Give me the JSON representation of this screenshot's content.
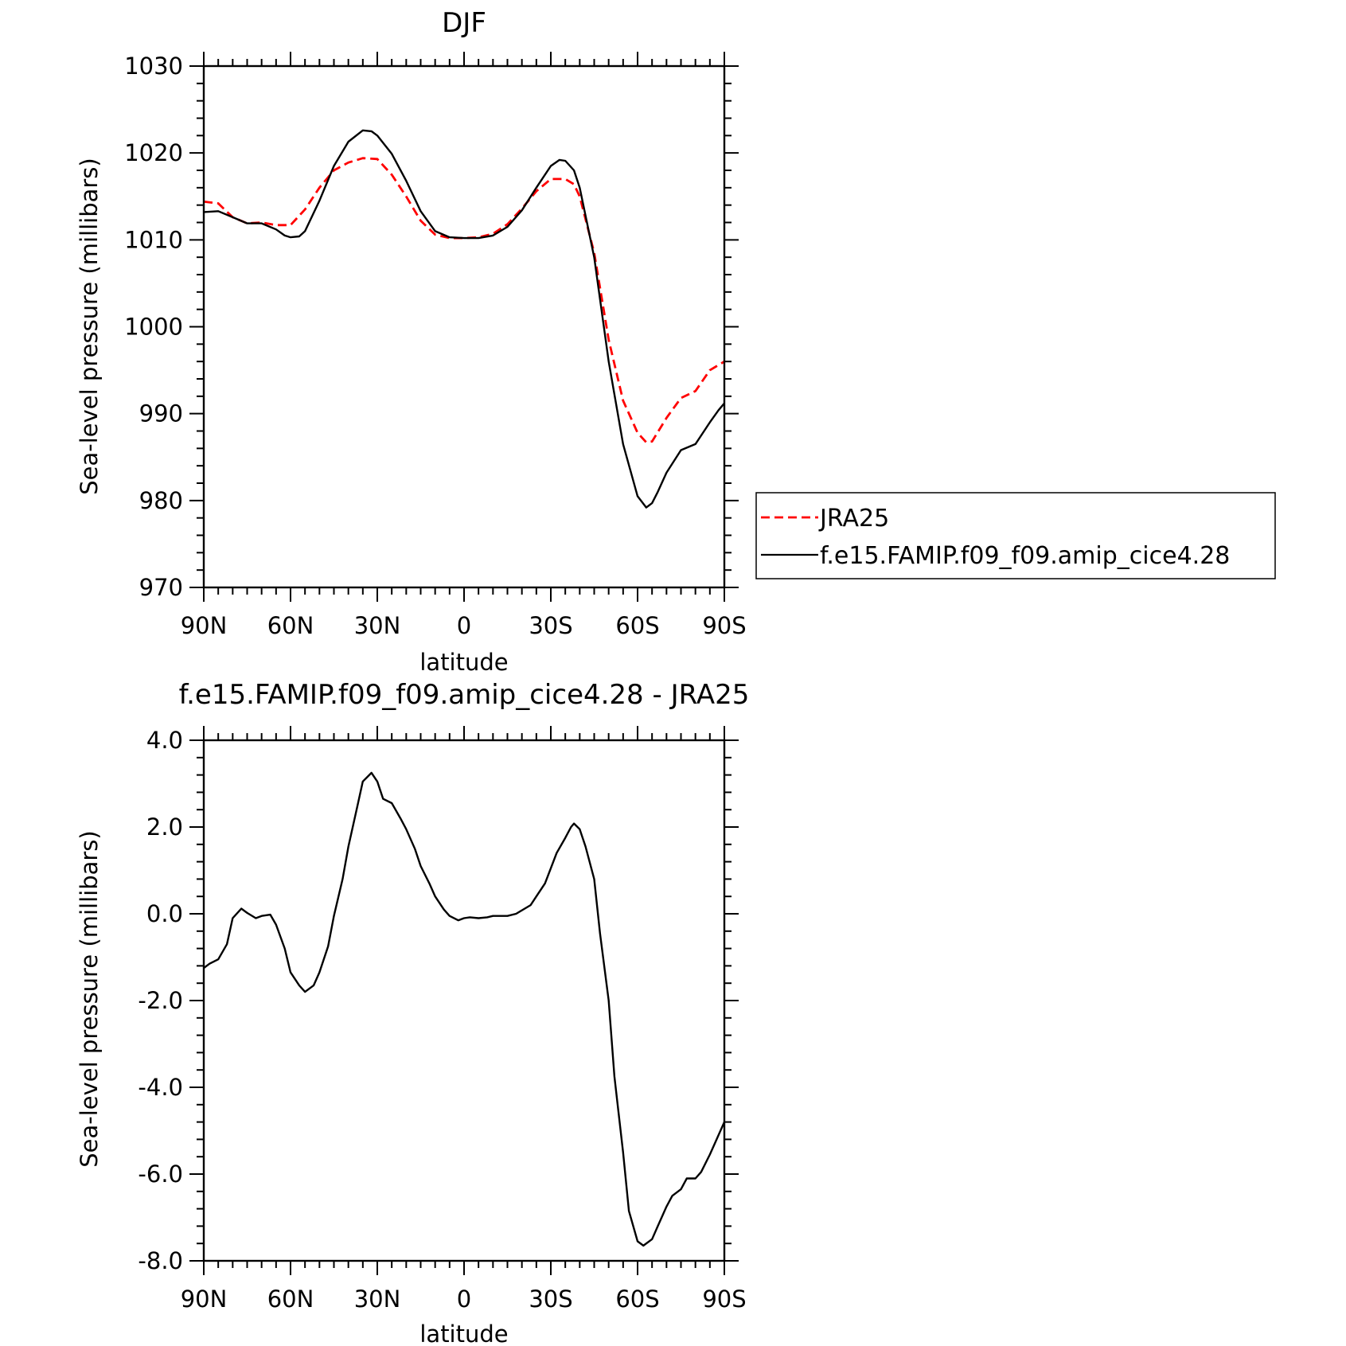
{
  "chart_data": [
    {
      "type": "line",
      "title": "DJF",
      "xlabel": "latitude",
      "ylabel": "Sea-level pressure (millibars)",
      "x_tick_labels": [
        "90N",
        "60N",
        "30N",
        "0",
        "30S",
        "60S",
        "90S"
      ],
      "x_tick_values": [
        90,
        60,
        30,
        0,
        -30,
        -60,
        -90
      ],
      "xlim": [
        90,
        -90
      ],
      "ylim": [
        970,
        1030
      ],
      "y_tick_values": [
        970,
        980,
        990,
        1000,
        1010,
        1020,
        1030
      ],
      "y_tick_labels": [
        "970",
        "980",
        "990",
        "1000",
        "1010",
        "1020",
        "1030"
      ],
      "grid": false,
      "legend_position": "right",
      "series": [
        {
          "name": "JRA25",
          "color": "#ff0000",
          "dash": "dashed",
          "x": [
            90,
            85,
            80,
            75,
            70,
            65,
            60,
            55,
            50,
            45,
            40,
            35,
            30,
            25,
            20,
            15,
            10,
            5,
            0,
            -5,
            -10,
            -15,
            -20,
            -25,
            -30,
            -35,
            -38,
            -40,
            -45,
            -50,
            -55,
            -60,
            -63,
            -65,
            -70,
            -75,
            -80,
            -85,
            -90
          ],
          "values": [
            1014.4,
            1014.2,
            1012.6,
            1011.9,
            1012.0,
            1011.7,
            1011.7,
            1013.5,
            1016.0,
            1018.0,
            1018.9,
            1019.4,
            1019.3,
            1017.5,
            1015.0,
            1012.2,
            1010.6,
            1010.2,
            1010.2,
            1010.3,
            1010.7,
            1011.8,
            1013.6,
            1015.6,
            1017.0,
            1017.0,
            1016.4,
            1015.0,
            1008.5,
            998.5,
            991.5,
            987.8,
            986.7,
            986.8,
            989.5,
            991.8,
            992.6,
            995.0,
            996.0
          ]
        },
        {
          "name": "f.e15.FAMIP.f09_f09.amip_cice4.28",
          "color": "#000000",
          "dash": "solid",
          "x": [
            90,
            85,
            80,
            75,
            70,
            65,
            62,
            60,
            57,
            55,
            50,
            45,
            40,
            35,
            32,
            30,
            25,
            20,
            15,
            10,
            5,
            0,
            -5,
            -10,
            -15,
            -20,
            -25,
            -30,
            -33,
            -35,
            -38,
            -40,
            -45,
            -50,
            -55,
            -60,
            -63,
            -65,
            -67,
            -70,
            -75,
            -80,
            -83,
            -85,
            -88,
            -90
          ],
          "values": [
            1013.2,
            1013.3,
            1012.6,
            1011.9,
            1011.9,
            1011.2,
            1010.5,
            1010.3,
            1010.4,
            1011.0,
            1014.5,
            1018.5,
            1021.3,
            1022.6,
            1022.5,
            1022.0,
            1019.9,
            1016.8,
            1013.3,
            1011.0,
            1010.3,
            1010.2,
            1010.2,
            1010.5,
            1011.5,
            1013.4,
            1016.0,
            1018.5,
            1019.2,
            1019.1,
            1018.0,
            1016.0,
            1008.0,
            996.0,
            986.5,
            980.5,
            979.2,
            979.7,
            981.0,
            983.2,
            985.8,
            986.5,
            988.0,
            989.0,
            990.4,
            991.2
          ]
        }
      ]
    },
    {
      "type": "line",
      "title": "f.e15.FAMIP.f09_f09.amip_cice4.28 - JRA25",
      "xlabel": "latitude",
      "ylabel": "Sea-level pressure (millibars)",
      "x_tick_labels": [
        "90N",
        "60N",
        "30N",
        "0",
        "30S",
        "60S",
        "90S"
      ],
      "x_tick_values": [
        90,
        60,
        30,
        0,
        -30,
        -60,
        -90
      ],
      "xlim": [
        90,
        -90
      ],
      "ylim": [
        -8,
        4
      ],
      "y_tick_values": [
        -8,
        -6,
        -4,
        -2,
        0,
        2,
        4
      ],
      "y_tick_labels": [
        "-8.0",
        "-6.0",
        "-4.0",
        "-2.0",
        "0.0",
        "2.0",
        "4.0"
      ],
      "grid": false,
      "series": [
        {
          "color": "#000000",
          "dash": "solid",
          "x": [
            90,
            88,
            85,
            82,
            80,
            77,
            75,
            72,
            70,
            67,
            65,
            62,
            60,
            57,
            55,
            52,
            50,
            47,
            45,
            42,
            40,
            37,
            35,
            32,
            30,
            28,
            25,
            22,
            20,
            17,
            15,
            12,
            10,
            7,
            5,
            2,
            0,
            -2,
            -5,
            -8,
            -10,
            -13,
            -15,
            -18,
            -20,
            -23,
            -25,
            -28,
            -30,
            -32,
            -35,
            -37,
            -38,
            -40,
            -42,
            -45,
            -47,
            -50,
            -52,
            -55,
            -57,
            -60,
            -62,
            -65,
            -67,
            -70,
            -72,
            -75,
            -77,
            -80,
            -82,
            -85,
            -87,
            -90
          ],
          "values": [
            -1.25,
            -1.15,
            -1.05,
            -0.7,
            -0.1,
            0.12,
            0.02,
            -0.1,
            -0.05,
            -0.02,
            -0.25,
            -0.8,
            -1.35,
            -1.65,
            -1.8,
            -1.65,
            -1.35,
            -0.75,
            -0.05,
            0.8,
            1.55,
            2.45,
            3.05,
            3.25,
            3.05,
            2.65,
            2.55,
            2.2,
            1.95,
            1.5,
            1.1,
            0.7,
            0.4,
            0.1,
            -0.05,
            -0.15,
            -0.1,
            -0.08,
            -0.1,
            -0.08,
            -0.05,
            -0.05,
            -0.05,
            0.0,
            0.08,
            0.2,
            0.4,
            0.7,
            1.05,
            1.4,
            1.75,
            2.0,
            2.08,
            1.95,
            1.55,
            0.8,
            -0.45,
            -2.0,
            -3.75,
            -5.5,
            -6.85,
            -7.55,
            -7.65,
            -7.5,
            -7.2,
            -6.75,
            -6.5,
            -6.35,
            -6.1,
            -6.1,
            -5.95,
            -5.55,
            -5.25,
            -4.8
          ]
        }
      ]
    }
  ]
}
